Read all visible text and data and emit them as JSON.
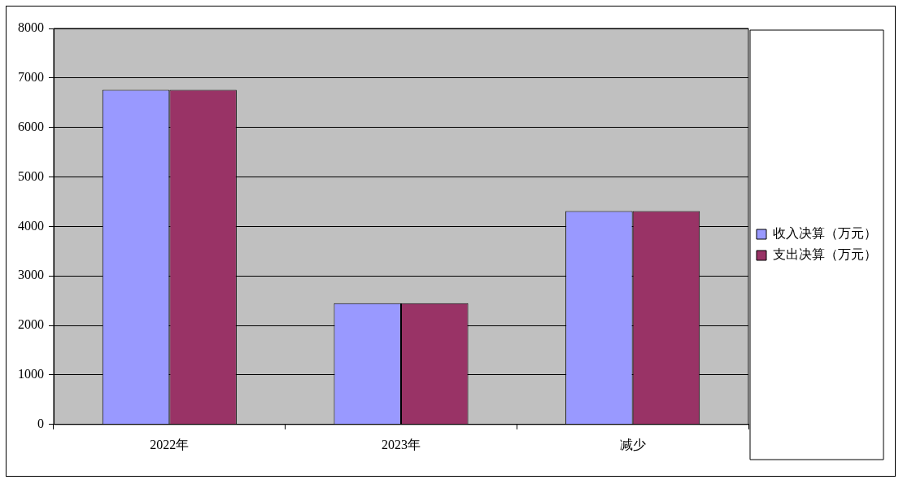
{
  "chart_data": {
    "type": "bar",
    "categories": [
      "2022年",
      "2023年",
      "减少"
    ],
    "series": [
      {
        "name": "收入决算（万元）",
        "color": "#9999ff",
        "values": [
          6760,
          2450,
          4310
        ]
      },
      {
        "name": "支出决算（万元）",
        "color": "#993366",
        "values": [
          6760,
          2450,
          4310
        ]
      }
    ],
    "ylim": [
      0,
      8000
    ],
    "yticks": [
      0,
      1000,
      2000,
      3000,
      4000,
      5000,
      6000,
      7000,
      8000
    ],
    "grid": "y",
    "legend": "right"
  }
}
